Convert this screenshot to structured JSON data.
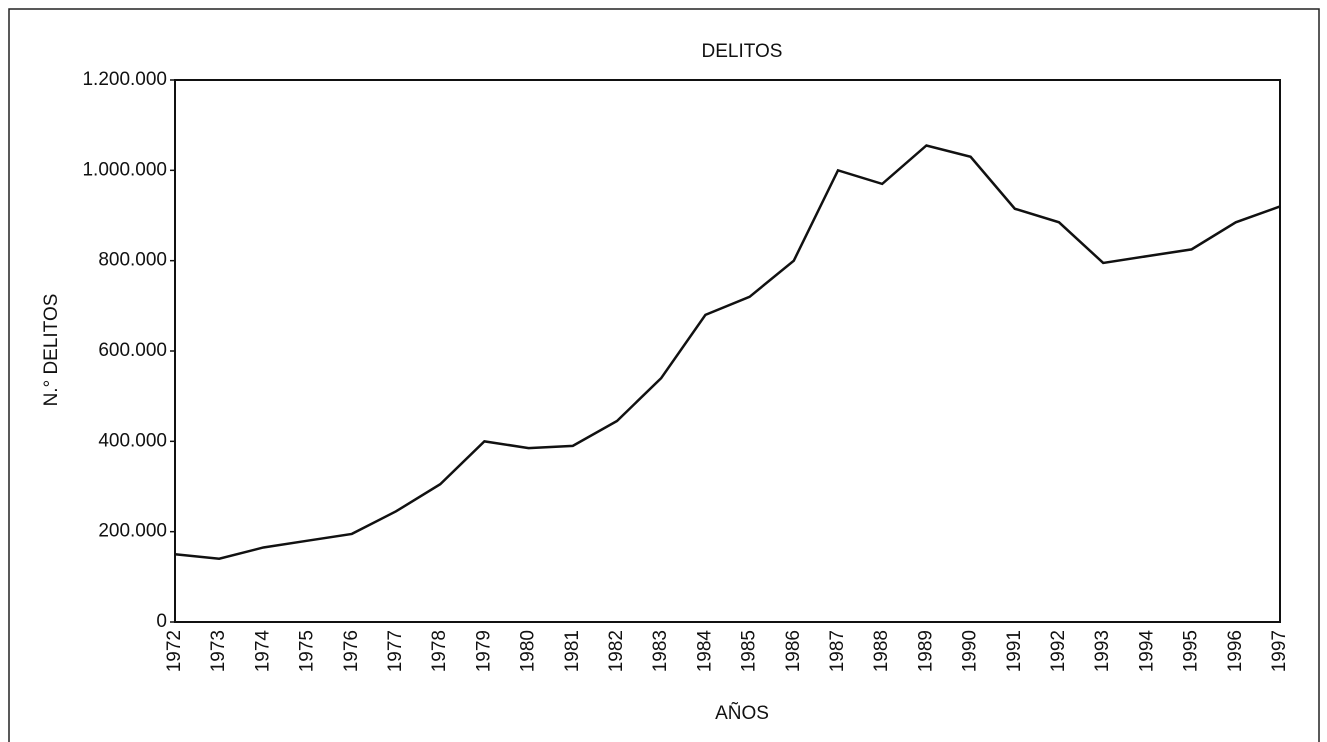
{
  "chart_data": {
    "type": "line",
    "title": "DELITOS",
    "x_label": "AÑOS",
    "y_label": "N.° DELITOS",
    "categories": [
      "1972",
      "1973",
      "1974",
      "1975",
      "1976",
      "1977",
      "1978",
      "1979",
      "1980",
      "1981",
      "1982",
      "1983",
      "1984",
      "1985",
      "1986",
      "1987",
      "1988",
      "1989",
      "1990",
      "1991",
      "1992",
      "1993",
      "1994",
      "1995",
      "1996",
      "1997"
    ],
    "series": [
      {
        "name": "DELITOS",
        "color": "#111111",
        "values": [
          150000,
          140000,
          165000,
          180000,
          195000,
          245000,
          305000,
          400000,
          385000,
          390000,
          445000,
          540000,
          680000,
          720000,
          800000,
          1000000,
          970000,
          1055000,
          1030000,
          915000,
          885000,
          795000,
          810000,
          825000,
          885000,
          920000
        ]
      }
    ],
    "ylim": [
      0,
      1200000
    ],
    "yticks": [
      0,
      {
        "value": 200000,
        "label": "200.000"
      },
      {
        "value": 400000,
        "label": "400.000"
      },
      {
        "value": 600000,
        "label": "600.000"
      },
      {
        "value": 800000,
        "label": "800.000"
      },
      {
        "value": 1000000,
        "label": "1.000.000"
      },
      {
        "value": 1200000,
        "label": "1.200.000"
      }
    ],
    "grid": false
  }
}
